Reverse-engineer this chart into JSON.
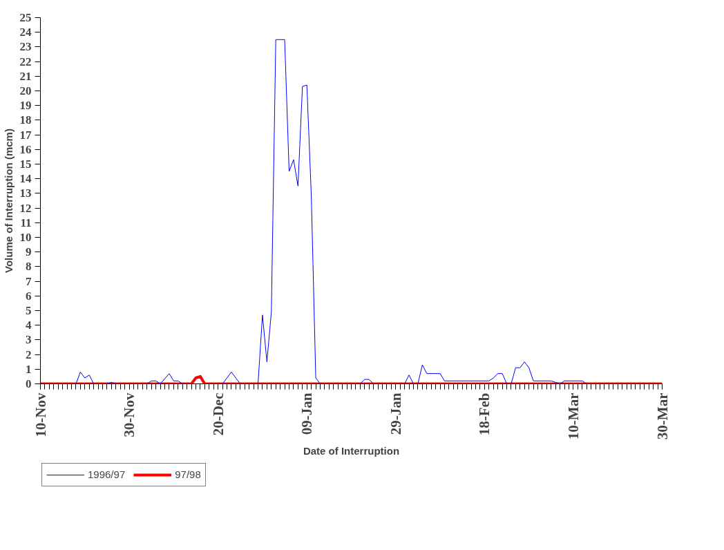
{
  "chart_data": {
    "type": "line",
    "xlabel": "Date of Interruption",
    "ylabel": "Volume of Interruption (mcm)",
    "xlim": [
      "1996-11-10",
      "1997-03-30"
    ],
    "xticks": [
      {
        "value": "1996-11-10",
        "label": "10-Nov"
      },
      {
        "value": "1996-11-30",
        "label": "30-Nov"
      },
      {
        "value": "1996-12-20",
        "label": "20-Dec"
      },
      {
        "value": "1997-01-09",
        "label": "09-Jan"
      },
      {
        "value": "1997-01-29",
        "label": "29-Jan"
      },
      {
        "value": "1997-02-18",
        "label": "18-Feb"
      },
      {
        "value": "1997-03-10",
        "label": "10-Mar"
      },
      {
        "value": "1997-03-30",
        "label": "30-Mar"
      }
    ],
    "ylim": [
      0,
      25
    ],
    "yticks": [
      0,
      1,
      2,
      3,
      4,
      5,
      6,
      7,
      8,
      9,
      10,
      11,
      12,
      13,
      14,
      15,
      16,
      17,
      18,
      19,
      20,
      21,
      22,
      23,
      24,
      25
    ],
    "grid": false,
    "legend": "bottom left",
    "marker": "none",
    "series": [
      {
        "name": "1996/97",
        "color": "#0000ff",
        "x": [
          "1996-11-10",
          "1996-11-18",
          "1996-11-19",
          "1996-11-20",
          "1996-11-21",
          "1996-11-22",
          "1996-11-25",
          "1996-11-26",
          "1996-11-27",
          "1996-12-04",
          "1996-12-05",
          "1996-12-06",
          "1996-12-07",
          "1996-12-09",
          "1996-12-10",
          "1996-12-11",
          "1996-12-12",
          "1996-12-21",
          "1996-12-22",
          "1996-12-23",
          "1996-12-25",
          "1996-12-29",
          "1996-12-30",
          "1996-12-31",
          "1997-01-01",
          "1997-01-02",
          "1997-01-03",
          "1997-01-04",
          "1997-01-05",
          "1997-01-06",
          "1997-01-07",
          "1997-01-08",
          "1997-01-09",
          "1997-01-10",
          "1997-01-11",
          "1997-01-12",
          "1997-01-21",
          "1997-01-22",
          "1997-01-23",
          "1997-01-24",
          "1997-01-31",
          "1997-02-01",
          "1997-02-02",
          "1997-02-03",
          "1997-02-04",
          "1997-02-05",
          "1997-02-08",
          "1997-02-09",
          "1997-02-19",
          "1997-02-20",
          "1997-02-21",
          "1997-02-22",
          "1997-02-23",
          "1997-02-24",
          "1997-02-25",
          "1997-02-26",
          "1997-02-27",
          "1997-02-28",
          "1997-03-01",
          "1997-03-05",
          "1997-03-06",
          "1997-03-07",
          "1997-03-08",
          "1997-03-12",
          "1997-03-13",
          "1997-03-30"
        ],
        "values": [
          0,
          0,
          0.8,
          0.4,
          0.6,
          0,
          0,
          0.1,
          0,
          0,
          0.2,
          0.2,
          0,
          0.7,
          0.2,
          0.2,
          0,
          0,
          0.4,
          0.8,
          0,
          0,
          4.7,
          1.5,
          4.9,
          23.5,
          23.5,
          23.5,
          14.5,
          15.3,
          13.5,
          20.3,
          20.4,
          12.8,
          0.4,
          0,
          0,
          0.3,
          0.3,
          0,
          0,
          0.6,
          0,
          0,
          1.3,
          0.7,
          0.7,
          0.2,
          0.2,
          0.4,
          0.7,
          0.7,
          0,
          0,
          1.1,
          1.1,
          1.5,
          1.1,
          0.2,
          0.2,
          0.1,
          0,
          0.2,
          0.2,
          0,
          0
        ]
      },
      {
        "name": "97/98",
        "color": "#ff0000",
        "x": [
          "1996-11-10",
          "1996-12-14",
          "1996-12-15",
          "1996-12-16",
          "1996-12-17",
          "1997-03-30"
        ],
        "values": [
          0,
          0,
          0.4,
          0.5,
          0,
          0
        ]
      }
    ]
  }
}
